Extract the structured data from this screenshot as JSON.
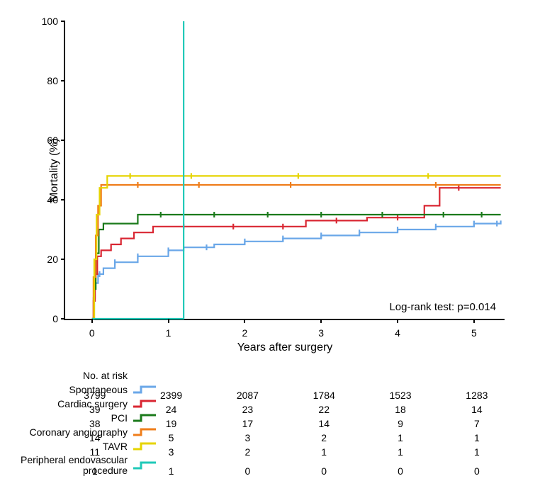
{
  "chart": {
    "type": "kaplan-meier-step",
    "background_color": "#ffffff",
    "axis_color": "#000000",
    "line_width": 2.2,
    "marker_line_width": 2.2,
    "x_axis": {
      "title": "Years after surgery",
      "ticks": [
        0,
        1,
        2,
        3,
        4,
        5
      ],
      "tick_labels": [
        "0",
        "1",
        "2",
        "3",
        "4",
        "5"
      ],
      "lim": [
        -0.35,
        5.4
      ],
      "title_fontsize": 16,
      "tick_fontsize": 14
    },
    "y_axis": {
      "title": "Mortality (%)",
      "ticks": [
        0,
        20,
        40,
        60,
        80,
        100
      ],
      "tick_labels": [
        "0",
        "20",
        "40",
        "60",
        "80",
        "100"
      ],
      "lim": [
        0,
        100
      ],
      "title_fontsize": 16,
      "tick_fontsize": 14
    },
    "annotation": {
      "text": "Log-rank test: p=0.014",
      "fontsize": 15
    },
    "series": [
      {
        "name": "Spontaneous",
        "color": "#6aa7e8",
        "points": [
          [
            0,
            0
          ],
          [
            0.02,
            7
          ],
          [
            0.04,
            12
          ],
          [
            0.08,
            15
          ],
          [
            0.15,
            17
          ],
          [
            0.3,
            19
          ],
          [
            0.6,
            21
          ],
          [
            1.0,
            23
          ],
          [
            1.2,
            24
          ],
          [
            1.6,
            25
          ],
          [
            2.0,
            26
          ],
          [
            2.5,
            27
          ],
          [
            3.0,
            28
          ],
          [
            3.5,
            29
          ],
          [
            4.0,
            30
          ],
          [
            4.5,
            31
          ],
          [
            5.0,
            32
          ],
          [
            5.35,
            33
          ]
        ],
        "marker_xs": [
          0.1,
          0.3,
          0.6,
          1.0,
          1.5,
          2.0,
          2.5,
          3.0,
          3.5,
          4.0,
          4.5,
          5.0,
          5.3
        ]
      },
      {
        "name": "Cardiac surgery",
        "color": "#d92632",
        "points": [
          [
            0,
            0
          ],
          [
            0.02,
            6
          ],
          [
            0.04,
            15
          ],
          [
            0.07,
            21
          ],
          [
            0.12,
            23
          ],
          [
            0.25,
            25
          ],
          [
            0.38,
            27
          ],
          [
            0.55,
            29
          ],
          [
            0.8,
            31
          ],
          [
            2.7,
            31
          ],
          [
            2.8,
            33
          ],
          [
            3.5,
            33
          ],
          [
            3.6,
            34
          ],
          [
            4.25,
            34
          ],
          [
            4.35,
            38
          ],
          [
            4.5,
            38
          ],
          [
            4.55,
            44
          ],
          [
            5.35,
            44
          ]
        ],
        "marker_xs": [
          1.2,
          1.85,
          2.5,
          3.2,
          4.0,
          4.8
        ]
      },
      {
        "name": "PCI",
        "color": "#1b7a1b",
        "points": [
          [
            0,
            0
          ],
          [
            0.03,
            10
          ],
          [
            0.05,
            22
          ],
          [
            0.09,
            30
          ],
          [
            0.15,
            32
          ],
          [
            0.55,
            32
          ],
          [
            0.6,
            35
          ],
          [
            5.35,
            35
          ]
        ],
        "marker_xs": [
          0.9,
          1.6,
          2.3,
          3.0,
          3.8,
          4.6,
          5.1
        ]
      },
      {
        "name": "Coronary angiography",
        "color": "#ef7d1a",
        "points": [
          [
            0,
            0
          ],
          [
            0.02,
            14
          ],
          [
            0.05,
            28
          ],
          [
            0.08,
            38
          ],
          [
            0.12,
            45
          ],
          [
            5.35,
            45
          ]
        ],
        "marker_xs": [
          0.6,
          1.4,
          2.6,
          4.5
        ]
      },
      {
        "name": "TAVR",
        "color": "#e6d400",
        "points": [
          [
            0,
            0
          ],
          [
            0.03,
            20
          ],
          [
            0.06,
            35
          ],
          [
            0.1,
            44
          ],
          [
            0.2,
            48
          ],
          [
            5.35,
            48
          ]
        ],
        "marker_xs": [
          0.5,
          1.3,
          2.7,
          4.4
        ]
      },
      {
        "name": "Peripheral endovascular procedure",
        "color": "#1fc9b8",
        "points": [
          [
            0,
            0
          ],
          [
            1.2,
            0
          ],
          [
            1.2,
            100
          ]
        ],
        "marker_xs": []
      }
    ]
  },
  "risk_table": {
    "header": "No. at risk",
    "timepoints": [
      0,
      1,
      2,
      3,
      4,
      5
    ],
    "rows": [
      {
        "label": "Spontaneous",
        "color": "#6aa7e8",
        "values": [
          "3799",
          "2399",
          "2087",
          "1784",
          "1523",
          "1283"
        ]
      },
      {
        "label": "Cardiac surgery",
        "color": "#d92632",
        "values": [
          "39",
          "24",
          "23",
          "22",
          "18",
          "14"
        ]
      },
      {
        "label": "PCI",
        "color": "#1b7a1b",
        "values": [
          "38",
          "19",
          "17",
          "14",
          "9",
          "7"
        ]
      },
      {
        "label": "Coronary angiography",
        "color": "#ef7d1a",
        "values": [
          "14",
          "5",
          "3",
          "2",
          "1",
          "1"
        ]
      },
      {
        "label": "TAVR",
        "color": "#e6d400",
        "values": [
          "11",
          "3",
          "2",
          "1",
          "1",
          "1"
        ]
      },
      {
        "label": "Peripheral endovascular procedure",
        "color": "#1fc9b8",
        "values": [
          "1",
          "1",
          "0",
          "0",
          "0",
          "0"
        ]
      }
    ]
  }
}
